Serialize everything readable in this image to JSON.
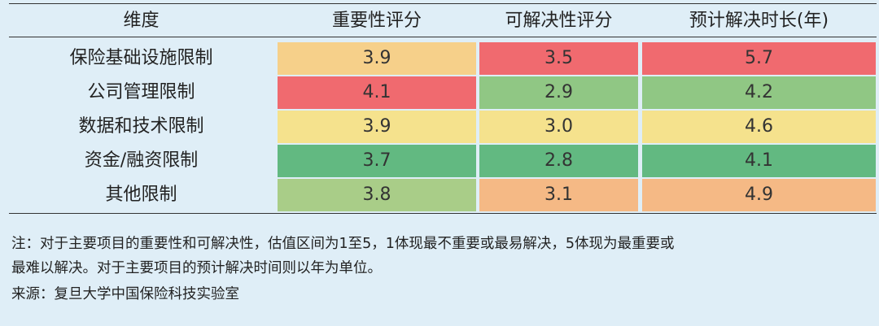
{
  "colors": {
    "background": "#dfeef7",
    "red": "#f06a6f",
    "orange": "#f5b985",
    "light_orange": "#f6d08a",
    "yellow": "#f5e28d",
    "light_green": "#a9cd88",
    "green": "#90c784",
    "dark_green": "#62b981"
  },
  "table": {
    "headers": [
      "维度",
      "重要性评分",
      "可解决性评分",
      "预计解决时长(年)"
    ],
    "rows": [
      {
        "label": "保险基础设施限制",
        "cells": [
          {
            "value": "3.9",
            "color": "#f6d08a"
          },
          {
            "value": "3.5",
            "color": "#f06a6f"
          },
          {
            "value": "5.7",
            "color": "#f06a6f"
          }
        ]
      },
      {
        "label": "公司管理限制",
        "cells": [
          {
            "value": "4.1",
            "color": "#f06a6f"
          },
          {
            "value": "2.9",
            "color": "#90c784"
          },
          {
            "value": "4.2",
            "color": "#90c784"
          }
        ]
      },
      {
        "label": "数据和技术限制",
        "cells": [
          {
            "value": "3.9",
            "color": "#f5e28d"
          },
          {
            "value": "3.0",
            "color": "#f5e28d"
          },
          {
            "value": "4.6",
            "color": "#f5e28d"
          }
        ]
      },
      {
        "label": "资金/融资限制",
        "cells": [
          {
            "value": "3.7",
            "color": "#62b981"
          },
          {
            "value": "2.8",
            "color": "#62b981"
          },
          {
            "value": "4.1",
            "color": "#62b981"
          }
        ]
      },
      {
        "label": "其他限制",
        "cells": [
          {
            "value": "3.8",
            "color": "#a9cd88"
          },
          {
            "value": "3.1",
            "color": "#f5b985"
          },
          {
            "value": "4.9",
            "color": "#f5b985"
          }
        ]
      }
    ]
  },
  "notes": {
    "line1": "注：对于主要项目的重要性和可解决性，估值区间为1至5，1体现最不重要或最易解决，5体现为最重要或",
    "line2": "最难以解决。对于主要项目的预计解决时间则以年为单位。",
    "source": "来源：复旦大学中国保险科技实验室"
  }
}
